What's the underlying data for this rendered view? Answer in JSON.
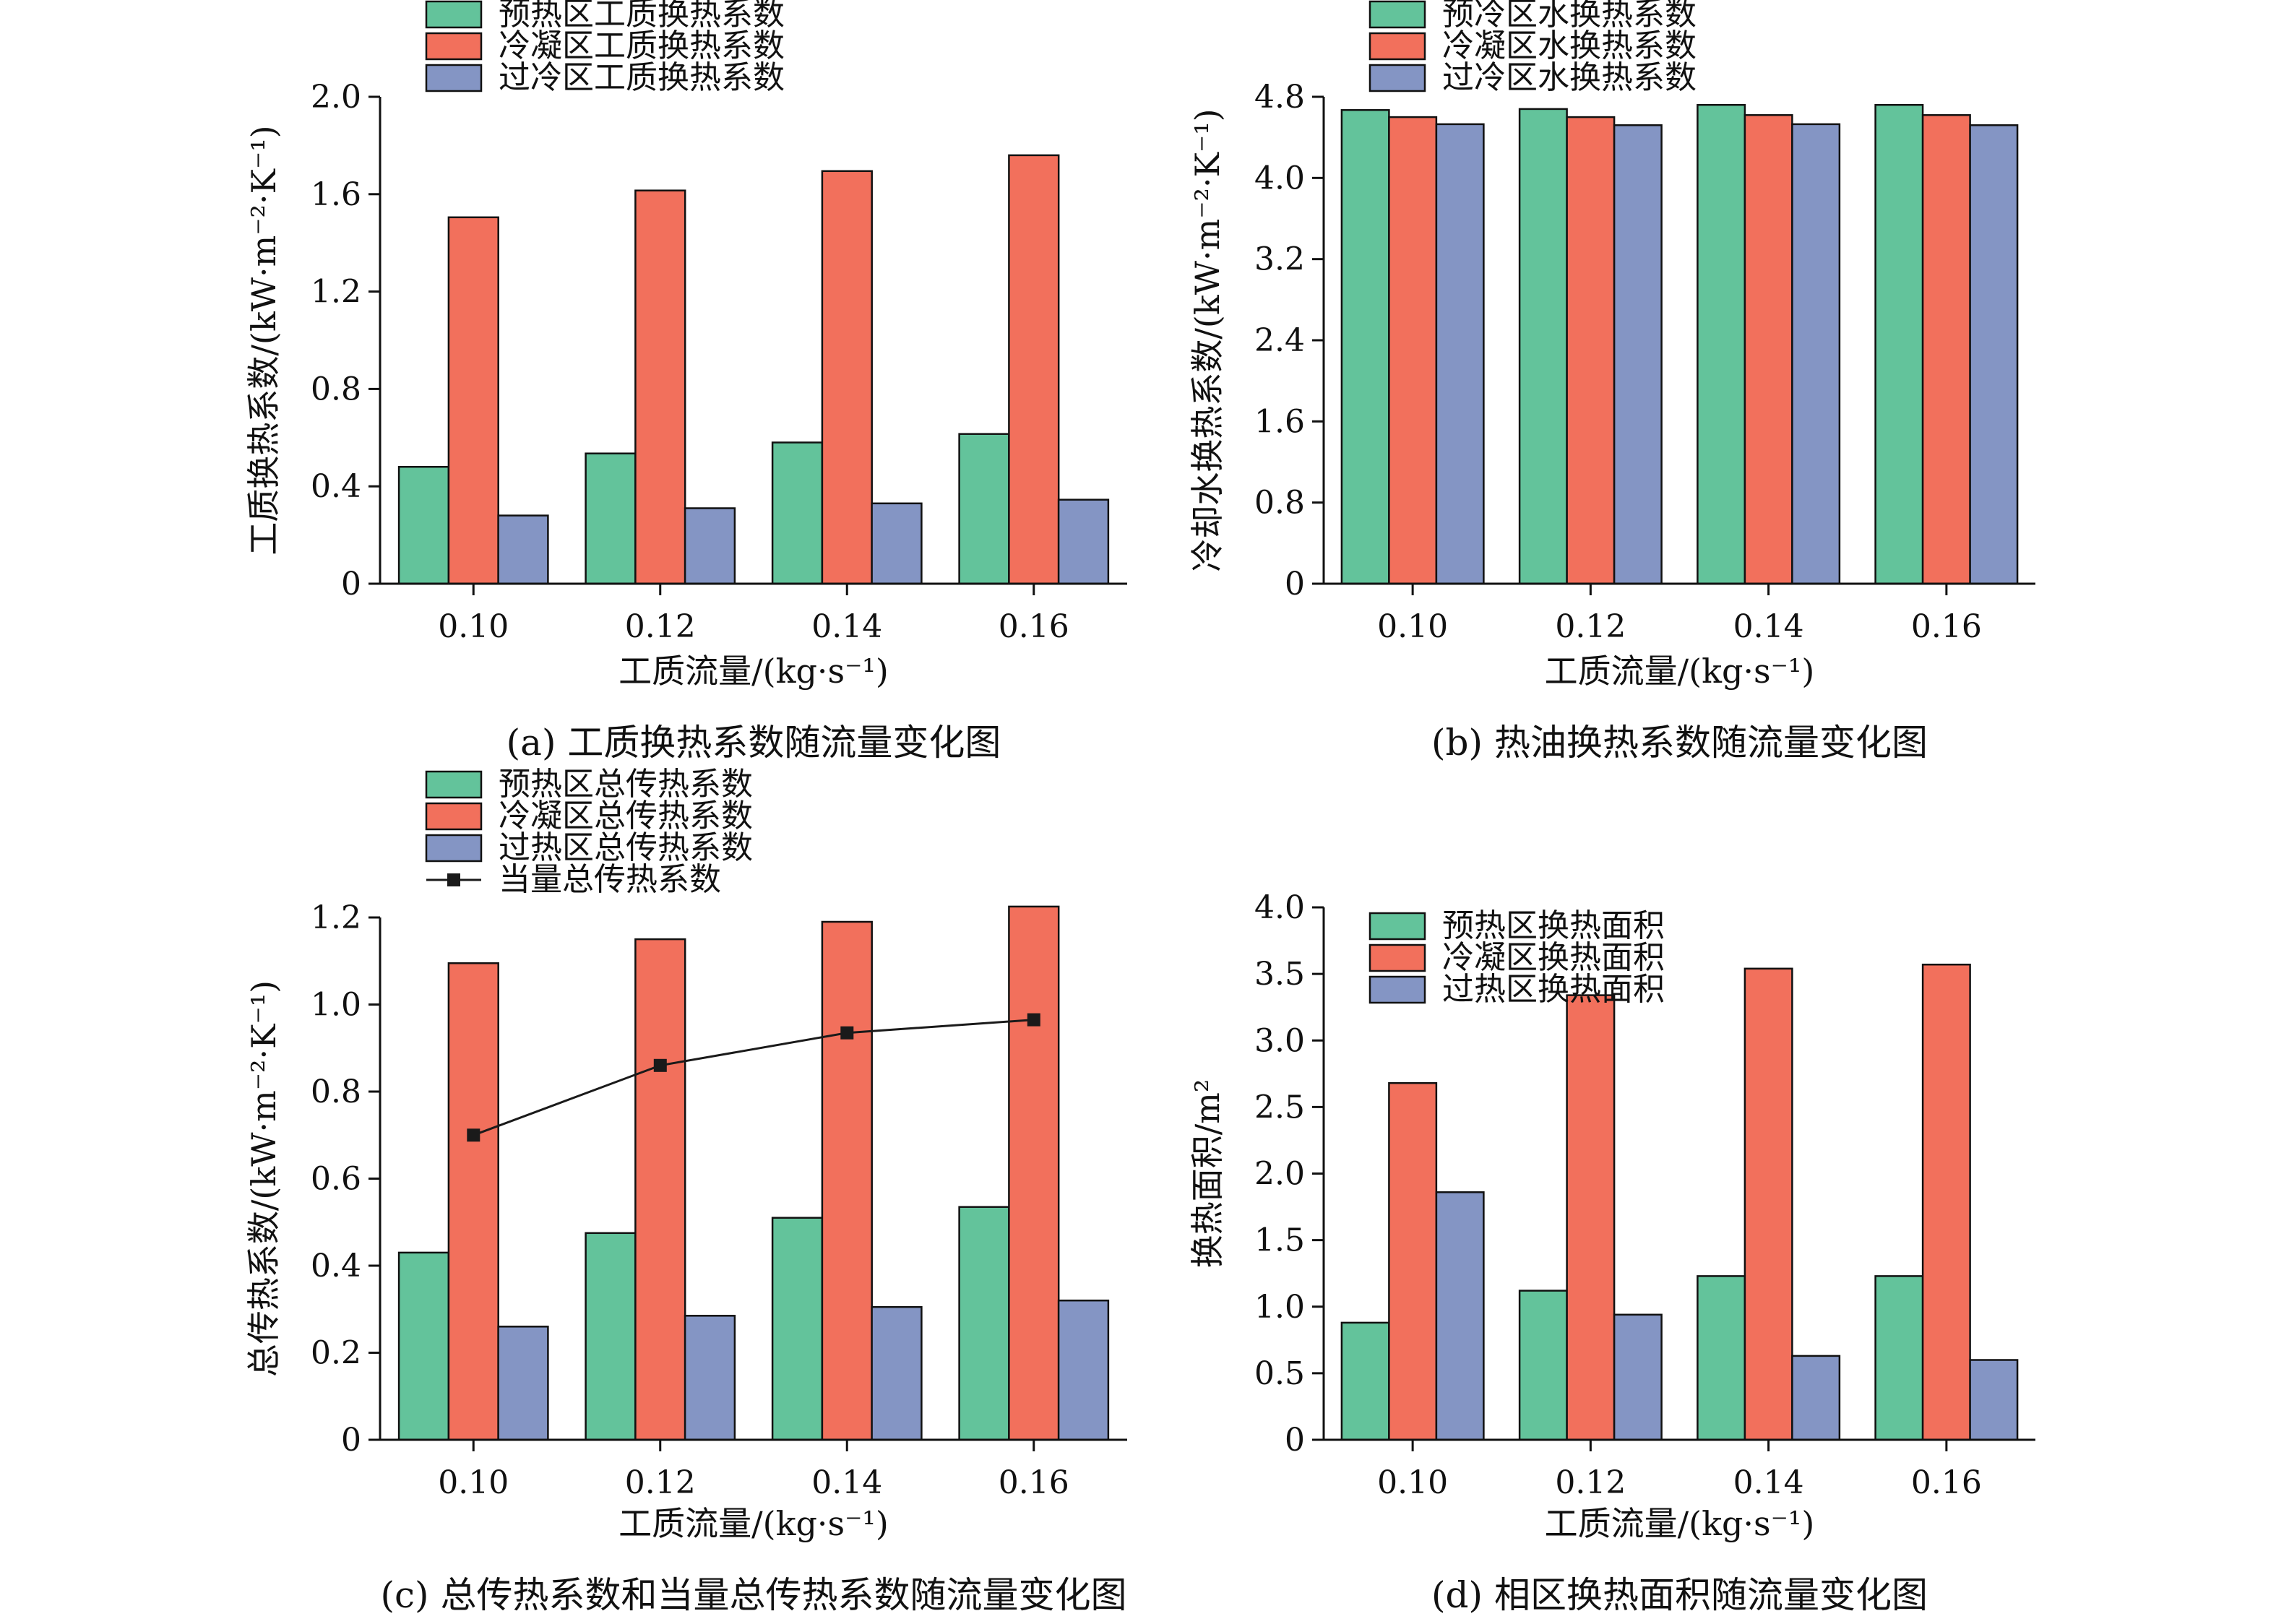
{
  "colors": {
    "green": "#63c39b",
    "red": "#f2705c",
    "blue": "#8495c4",
    "line": "#1a1a1a"
  },
  "chart_data": [
    {
      "id": "a",
      "type": "bar",
      "caption": "(a) 工质换热系数随流量变化图",
      "xlabel": "工质流量/(kg·s⁻¹)",
      "ylabel": "工质换热系数/(kW·m⁻²·K⁻¹)",
      "categories": [
        "0.10",
        "0.12",
        "0.14",
        "0.16"
      ],
      "ylim": [
        0,
        2.0
      ],
      "yticks": [
        "0",
        "0.4",
        "0.8",
        "1.2",
        "1.6",
        "2.0"
      ],
      "legend_position": "top-left",
      "series": [
        {
          "name": "预热区工质换热系数",
          "color_key": "green",
          "values": [
            0.48,
            0.535,
            0.58,
            0.615
          ]
        },
        {
          "name": "冷凝区工质换热系数",
          "color_key": "red",
          "values": [
            1.505,
            1.615,
            1.695,
            1.76
          ]
        },
        {
          "name": "过冷区工质换热系数",
          "color_key": "blue",
          "values": [
            0.28,
            0.31,
            0.33,
            0.345
          ]
        }
      ]
    },
    {
      "id": "b",
      "type": "bar",
      "caption": "(b) 热油换热系数随流量变化图",
      "xlabel": "工质流量/(kg·s⁻¹)",
      "ylabel": "冷却水换热系数/(kW·m⁻²·K⁻¹)",
      "categories": [
        "0.10",
        "0.12",
        "0.14",
        "0.16"
      ],
      "ylim": [
        0,
        4.8
      ],
      "yticks": [
        "0",
        "0.8",
        "1.6",
        "2.4",
        "3.2",
        "4.0",
        "4.8"
      ],
      "legend_position": "top-left",
      "series": [
        {
          "name": "预冷区水换热系数",
          "color_key": "green",
          "values": [
            4.67,
            4.68,
            4.72,
            4.72
          ]
        },
        {
          "name": "冷凝区水换热系数",
          "color_key": "red",
          "values": [
            4.6,
            4.6,
            4.62,
            4.62
          ]
        },
        {
          "name": "过冷区水换热系数",
          "color_key": "blue",
          "values": [
            4.53,
            4.52,
            4.53,
            4.52
          ]
        }
      ]
    },
    {
      "id": "c",
      "type": "bar",
      "caption": "(c) 总传热系数和当量总传热系数随流量变化图",
      "xlabel": "工质流量/(kg·s⁻¹)",
      "ylabel": "总传热系数/(kW·m⁻²·K⁻¹)",
      "categories": [
        "0.10",
        "0.12",
        "0.14",
        "0.16"
      ],
      "ylim": [
        0,
        1.2
      ],
      "yticks": [
        "0",
        "0.2",
        "0.4",
        "0.6",
        "0.8",
        "1.0",
        "1.2"
      ],
      "legend_position": "top-left",
      "series": [
        {
          "name": "预热区总传热系数",
          "color_key": "green",
          "values": [
            0.43,
            0.475,
            0.51,
            0.535
          ]
        },
        {
          "name": "冷凝区总传热系数",
          "color_key": "red",
          "values": [
            1.095,
            1.15,
            1.19,
            1.225
          ]
        },
        {
          "name": "过热区总传热系数",
          "color_key": "blue",
          "values": [
            0.26,
            0.285,
            0.305,
            0.32
          ]
        }
      ],
      "line_series": {
        "name": "当量总传热系数",
        "color_key": "line",
        "values": [
          0.7,
          0.86,
          0.935,
          0.965
        ]
      }
    },
    {
      "id": "d",
      "type": "bar",
      "caption": "(d) 相区换热面积随流量变化图",
      "xlabel": "工质流量/(kg·s⁻¹)",
      "ylabel": "换热面积/m²",
      "categories": [
        "0.10",
        "0.12",
        "0.14",
        "0.16"
      ],
      "ylim": [
        0,
        4.0
      ],
      "yticks": [
        "0",
        "0.5",
        "1.0",
        "1.5",
        "2.0",
        "2.5",
        "3.0",
        "3.5",
        "4.0"
      ],
      "legend_position": "top-left",
      "series": [
        {
          "name": "预热区换热面积",
          "color_key": "green",
          "values": [
            0.88,
            1.12,
            1.23,
            1.23
          ]
        },
        {
          "name": "冷凝区换热面积",
          "color_key": "red",
          "values": [
            2.68,
            3.34,
            3.54,
            3.57
          ]
        },
        {
          "name": "过热区换热面积",
          "color_key": "blue",
          "values": [
            1.86,
            0.94,
            0.63,
            0.6
          ]
        }
      ]
    }
  ]
}
